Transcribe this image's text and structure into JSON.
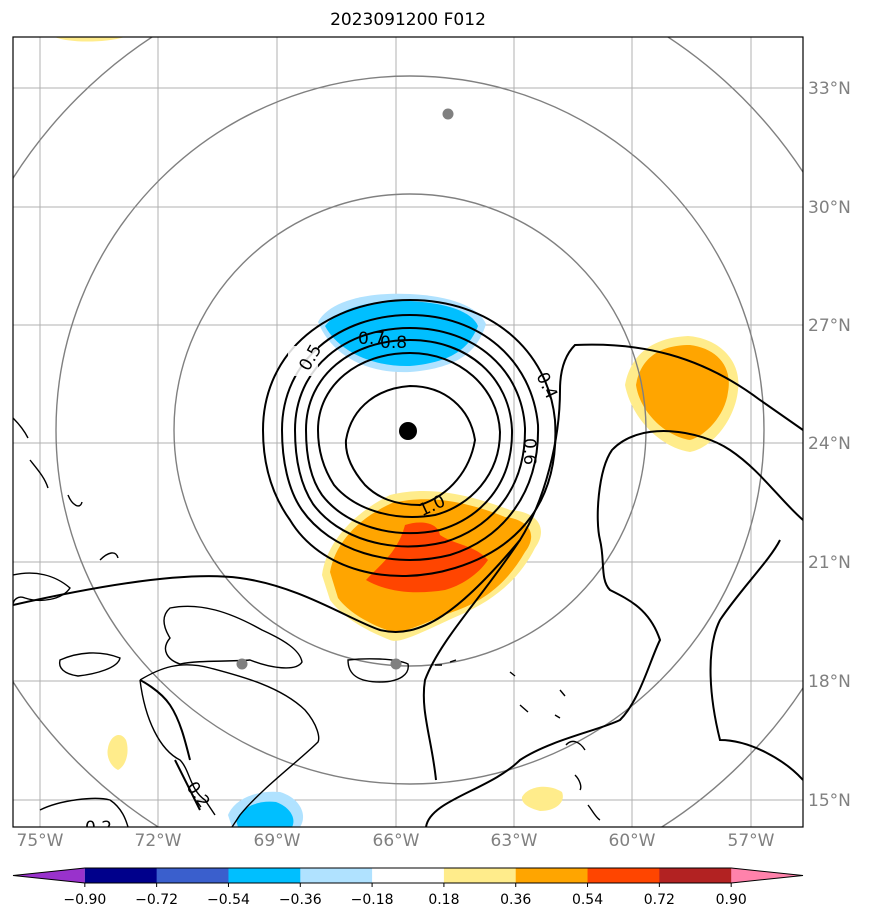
{
  "title": "2023091200 F012",
  "map": {
    "lat_labels": [
      "33°N",
      "30°N",
      "27°N",
      "24°N",
      "21°N",
      "18°N",
      "15°N"
    ],
    "lon_labels": [
      "75°W",
      "72°W",
      "69°W",
      "66°W",
      "63°W",
      "60°W",
      "57°W"
    ],
    "contour_labels": [
      "0.5",
      "0.7",
      "0.8",
      "0.4",
      "0.6",
      "1.0",
      "0.2",
      "0.2"
    ],
    "center_marker": "storm-center"
  },
  "colorbar": {
    "colors": [
      "#9932cc",
      "#00008b",
      "#3a5fcd",
      "#00bfff",
      "#b0e2ff",
      "#ffffff",
      "#ffec8b",
      "#ffa500",
      "#ff4500",
      "#b22222",
      "#ff82ab"
    ],
    "tick_labels": [
      "−0.90",
      "−0.72",
      "−0.54",
      "−0.36",
      "−0.18",
      "0.18",
      "0.36",
      "0.54",
      "0.72",
      "0.90"
    ]
  }
}
